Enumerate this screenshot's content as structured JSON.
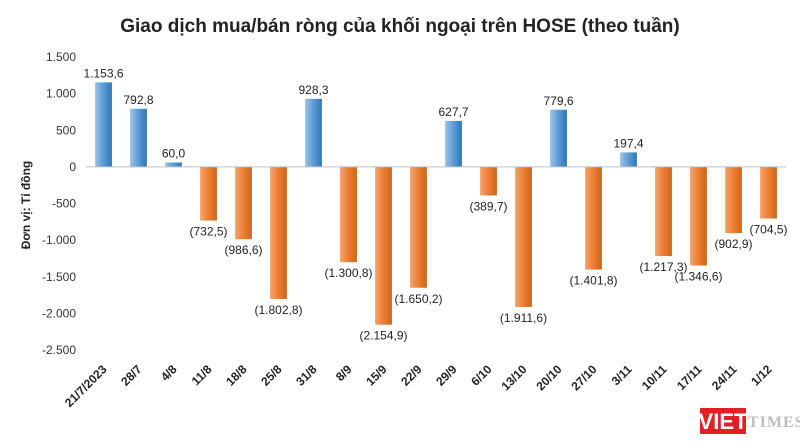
{
  "chart_data": {
    "type": "bar",
    "title": "Giao dịch mua/bán ròng của khối ngoại trên HOSE (theo tuần)",
    "ylabel": "Đơn vị: Tỉ đồng",
    "xlabel": "",
    "ylim": [
      -2500,
      1500
    ],
    "yticks": [
      1500,
      1000,
      500,
      0,
      -500,
      -1000,
      -1500,
      -2000,
      -2500
    ],
    "ytick_labels": [
      "1.500",
      "1.000",
      "500",
      "0",
      "-500",
      "-1.000",
      "-1.500",
      "-2.000",
      "-2.500"
    ],
    "grid": false,
    "categories": [
      "21/7/2023",
      "28/7",
      "4/8",
      "11/8",
      "18/8",
      "25/8",
      "31/8",
      "8/9",
      "15/9",
      "22/9",
      "29/9",
      "6/10",
      "13/10",
      "20/10",
      "27/10",
      "3/11",
      "10/11",
      "17/11",
      "24/11",
      "1/12"
    ],
    "values": [
      1153.6,
      792.8,
      60.0,
      -732.5,
      -986.6,
      -1802.8,
      928.3,
      -1300.8,
      -2154.9,
      -1650.2,
      627.7,
      -389.7,
      -1911.6,
      779.6,
      -1401.8,
      197.4,
      -1217.3,
      -1346.6,
      -902.9,
      -704.5
    ],
    "data_labels": [
      "1.153,6",
      "792,8",
      "60,0",
      "(732,5)",
      "(986,6)",
      "(1.802,8)",
      "928,3",
      "(1.300,8)",
      "(2.154,9)",
      "(1.650,2)",
      "627,7",
      "(389,7)",
      "(1.911,6)",
      "779,6",
      "(1.401,8)",
      "197,4",
      "(1.217,3)",
      "(1.346,6)",
      "(902,9)",
      "(704,5)"
    ],
    "colors": {
      "positive": "#5b9bd5",
      "negative": "#ed7d31"
    }
  },
  "watermark": {
    "part1": "VIET",
    "part2": "TIMES",
    "color": "#e31e24"
  }
}
